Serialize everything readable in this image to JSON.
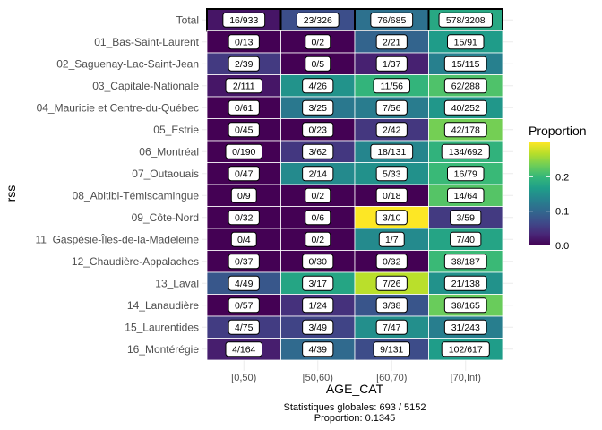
{
  "chart_data": {
    "type": "heatmap",
    "xlabel": "AGE_CAT",
    "ylabel": "rss",
    "x_categories": [
      "[0,50)",
      "[50,60)",
      "[60,70)",
      "[70,Inf)"
    ],
    "y_categories": [
      "Total",
      "01_Bas-Saint-Laurent",
      "02_Saguenay-Lac-Saint-Jean",
      "03_Capitale-Nationale",
      "04_Mauricie et Centre-du-Québec",
      "05_Estrie",
      "06_Montréal",
      "07_Outaouais",
      "08_Abitibi-Témiscamingue",
      "09_Côte-Nord",
      "11_Gaspésie-Îles-de-la-Madeleine",
      "12_Chaudière-Appalaches",
      "13_Laval",
      "14_Lanaudière",
      "15_Laurentides",
      "16_Montérégie"
    ],
    "cells": [
      [
        {
          "label": "16/933",
          "value": 0.0171
        },
        {
          "label": "23/326",
          "value": 0.0706
        },
        {
          "label": "76/685",
          "value": 0.1109
        },
        {
          "label": "578/3208",
          "value": 0.1802
        }
      ],
      [
        {
          "label": "0/13",
          "value": 0.0
        },
        {
          "label": "0/2",
          "value": 0.0
        },
        {
          "label": "2/21",
          "value": 0.0952
        },
        {
          "label": "15/91",
          "value": 0.1648
        }
      ],
      [
        {
          "label": "2/39",
          "value": 0.0513
        },
        {
          "label": "0/5",
          "value": 0.0
        },
        {
          "label": "1/37",
          "value": 0.027
        },
        {
          "label": "15/115",
          "value": 0.1304
        }
      ],
      [
        {
          "label": "2/111",
          "value": 0.018
        },
        {
          "label": "4/26",
          "value": 0.1538
        },
        {
          "label": "11/56",
          "value": 0.1964
        },
        {
          "label": "62/288",
          "value": 0.2153
        }
      ],
      [
        {
          "label": "0/61",
          "value": 0.0
        },
        {
          "label": "3/25",
          "value": 0.12
        },
        {
          "label": "7/56",
          "value": 0.125
        },
        {
          "label": "40/252",
          "value": 0.1587
        }
      ],
      [
        {
          "label": "0/45",
          "value": 0.0
        },
        {
          "label": "0/23",
          "value": 0.0
        },
        {
          "label": "2/42",
          "value": 0.0476
        },
        {
          "label": "42/178",
          "value": 0.236
        }
      ],
      [
        {
          "label": "0/190",
          "value": 0.0
        },
        {
          "label": "3/62",
          "value": 0.0484
        },
        {
          "label": "18/131",
          "value": 0.1374
        },
        {
          "label": "134/692",
          "value": 0.1936
        }
      ],
      [
        {
          "label": "0/47",
          "value": 0.0
        },
        {
          "label": "2/14",
          "value": 0.1429
        },
        {
          "label": "5/33",
          "value": 0.1515
        },
        {
          "label": "16/79",
          "value": 0.2025
        }
      ],
      [
        {
          "label": "0/9",
          "value": 0.0
        },
        {
          "label": "0/2",
          "value": 0.0
        },
        {
          "label": "0/18",
          "value": 0.0
        },
        {
          "label": "14/64",
          "value": 0.2188
        }
      ],
      [
        {
          "label": "0/32",
          "value": 0.0
        },
        {
          "label": "0/6",
          "value": 0.0
        },
        {
          "label": "3/10",
          "value": 0.3
        },
        {
          "label": "3/59",
          "value": 0.0508
        }
      ],
      [
        {
          "label": "0/4",
          "value": 0.0
        },
        {
          "label": "0/2",
          "value": 0.0
        },
        {
          "label": "1/7",
          "value": 0.1429
        },
        {
          "label": "7/40",
          "value": 0.175
        }
      ],
      [
        {
          "label": "0/37",
          "value": 0.0
        },
        {
          "label": "0/30",
          "value": 0.0
        },
        {
          "label": "0/32",
          "value": 0.0
        },
        {
          "label": "38/187",
          "value": 0.2032
        }
      ],
      [
        {
          "label": "4/49",
          "value": 0.0816
        },
        {
          "label": "3/17",
          "value": 0.1765
        },
        {
          "label": "7/26",
          "value": 0.2692
        },
        {
          "label": "21/138",
          "value": 0.1522
        }
      ],
      [
        {
          "label": "0/57",
          "value": 0.0
        },
        {
          "label": "1/24",
          "value": 0.0417
        },
        {
          "label": "3/38",
          "value": 0.0789
        },
        {
          "label": "38/165",
          "value": 0.2303
        }
      ],
      [
        {
          "label": "4/75",
          "value": 0.0533
        },
        {
          "label": "3/49",
          "value": 0.0612
        },
        {
          "label": "7/47",
          "value": 0.1489
        },
        {
          "label": "31/243",
          "value": 0.1276
        }
      ],
      [
        {
          "label": "4/164",
          "value": 0.0244
        },
        {
          "label": "4/39",
          "value": 0.1026
        },
        {
          "label": "9/131",
          "value": 0.0687
        },
        {
          "label": "102/617",
          "value": 0.1653
        }
      ]
    ],
    "legend": {
      "title": "Proportion",
      "ticks": [
        0.0,
        0.1,
        0.2
      ],
      "tick_labels": [
        "0.0",
        "0.1",
        "0.2"
      ],
      "range": [
        0,
        0.3
      ],
      "placement": "right"
    },
    "caption_lines": [
      "Statistiques globales: 693 / 5152",
      "Proportion: 0.1345"
    ],
    "highlight_row": "Total",
    "colormap": "viridis",
    "grid": true
  }
}
